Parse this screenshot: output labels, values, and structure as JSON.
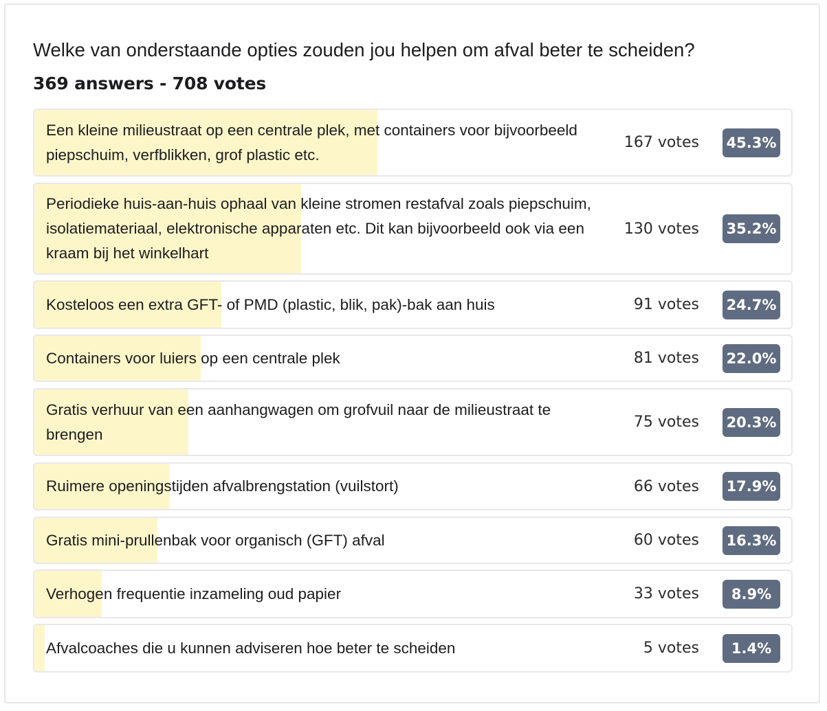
{
  "poll": {
    "question": "Welke van onderstaande opties zouden jou helpen om afval beter te scheiden?",
    "summary": "369 answers - 708 votes"
  },
  "colors": {
    "bar_fill": "#fdf6c9",
    "badge": "#5f6b80",
    "border": "#e8e8ec"
  },
  "chart_data": {
    "type": "bar",
    "orientation": "horizontal",
    "total_answers": 369,
    "total_votes": 708,
    "categories": [
      "Een kleine milieustraat op een centrale plek, met containers voor bijvoorbeeld piepschuim, verfblikken, grof plastic etc.",
      "Periodieke huis-aan-huis ophaal van kleine stromen restafval zoals piepschuim, isolatiemateriaal, elektronische apparaten etc. Dit kan bijvoorbeeld ook via een kraam bij het winkelhart",
      "Kosteloos een extra GFT- of PMD (plastic, blik, pak)-bak aan huis",
      "Containers voor luiers op een centrale plek",
      "Gratis verhuur van een aanhangwagen om grofvuil naar de milieustraat te brengen",
      "Ruimere openingstijden afvalbrengstation (vuilstort)",
      "Gratis mini-prullenbak voor organisch (GFT) afval",
      "Verhogen frequentie inzameling oud papier",
      "Afvalcoaches die u kunnen adviseren hoe beter te scheiden"
    ],
    "values": [
      167,
      130,
      91,
      81,
      75,
      66,
      60,
      33,
      5
    ],
    "vote_labels": [
      "167 votes",
      "130 votes",
      "91 votes",
      "81 votes",
      "75 votes",
      "66 votes",
      "60 votes",
      "33 votes",
      "5 votes"
    ],
    "percents": [
      45.3,
      35.2,
      24.7,
      22.0,
      20.3,
      17.9,
      16.3,
      8.9,
      1.4
    ],
    "percent_labels": [
      "45.3%",
      "35.2%",
      "24.7%",
      "22.0%",
      "20.3%",
      "17.9%",
      "16.3%",
      "8.9%",
      "1.4%"
    ]
  }
}
